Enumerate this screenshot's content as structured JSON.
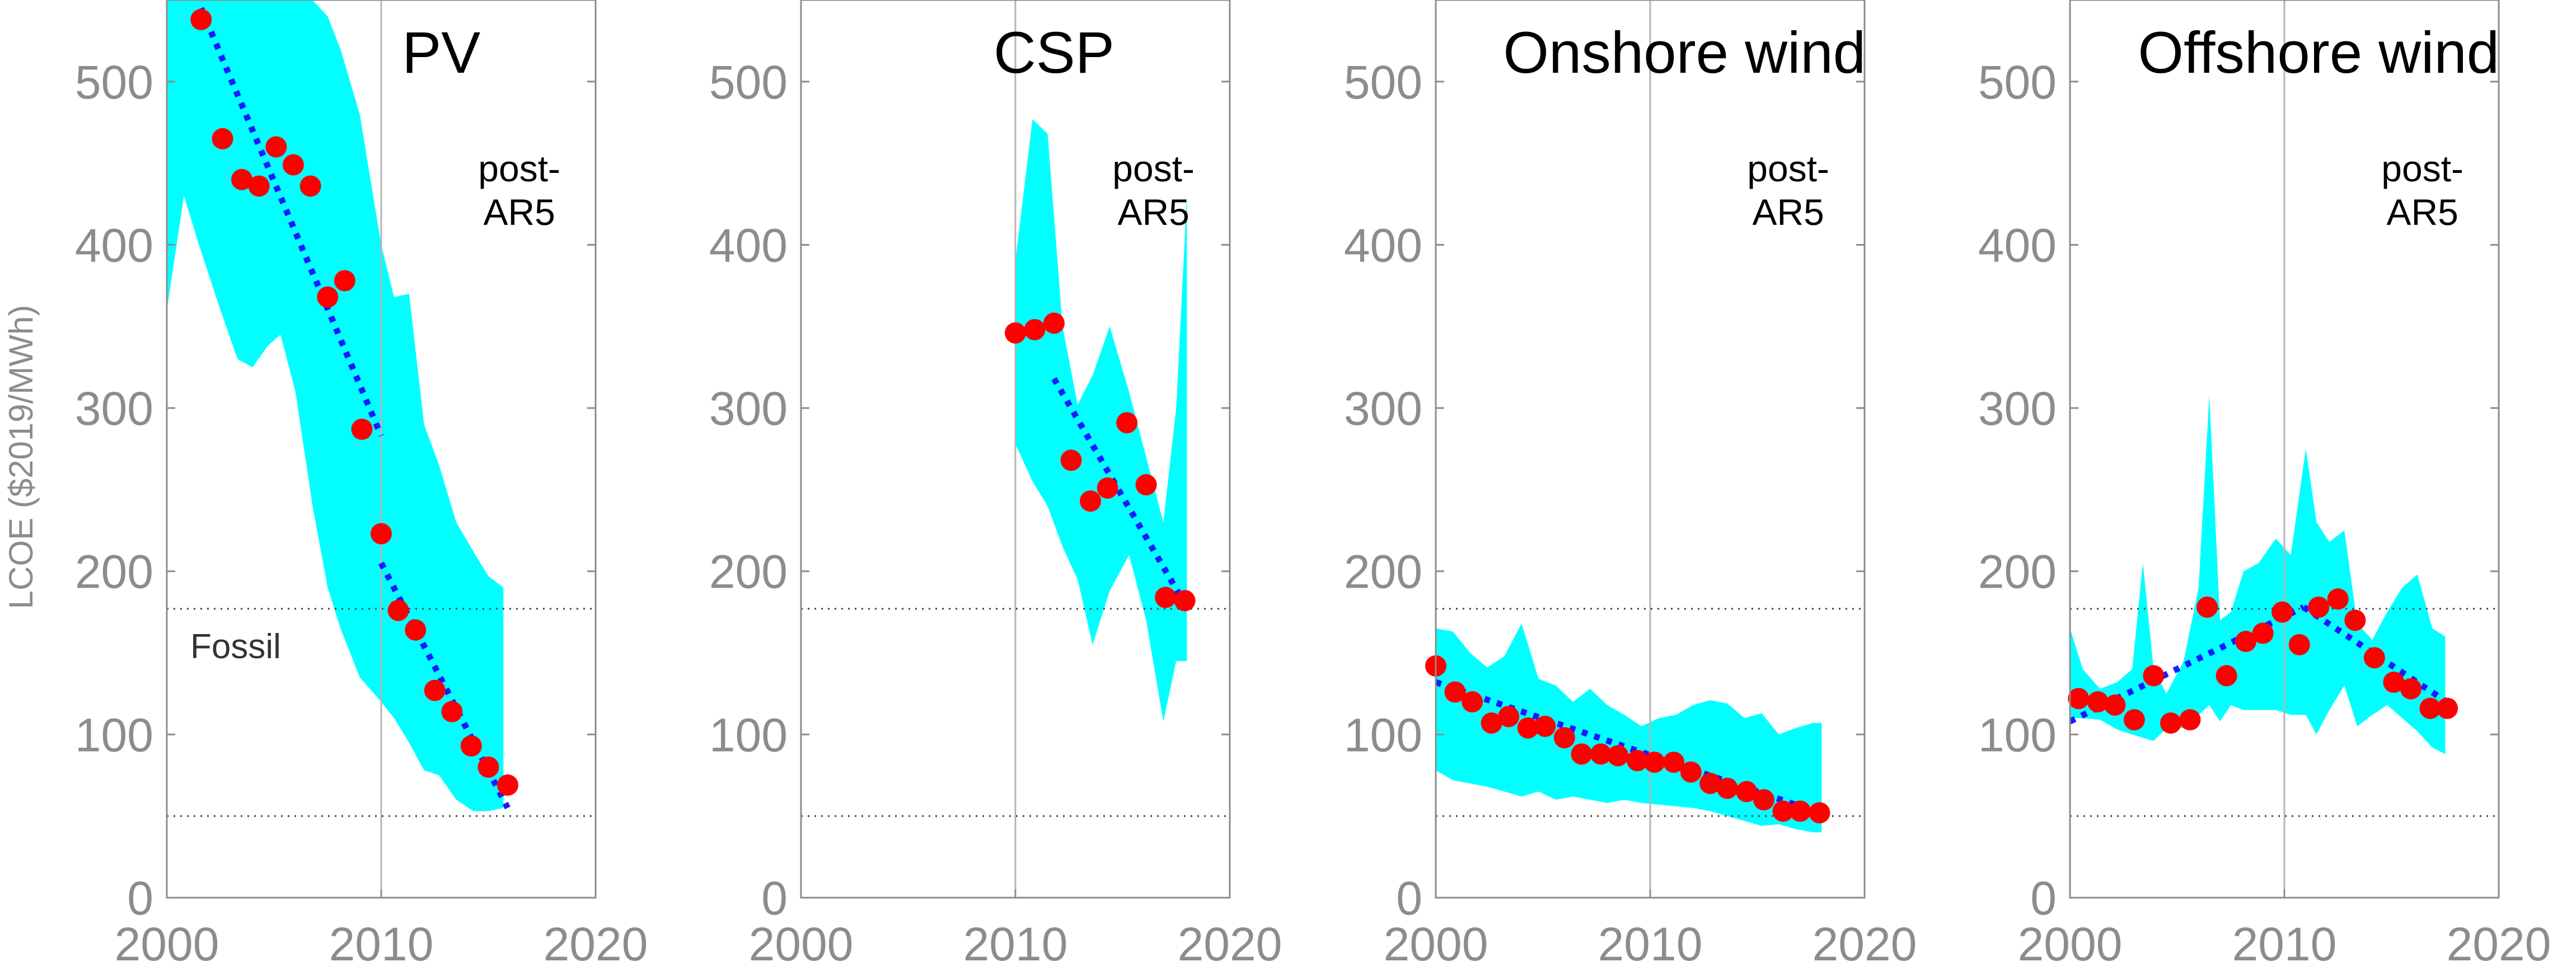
{
  "colors": {
    "band": "#00ffff",
    "points": "#ff0000",
    "trend": "#1a1aff",
    "axis": "#8c8c8c",
    "fossil_line": "#444444"
  },
  "chart_data": [
    {
      "type": "scatter",
      "title": "PV",
      "annotation": "post-\nAR5",
      "fossil_label": "Fossil",
      "ylabel": "LCOE ($2019/MWh)",
      "xlim": [
        2000,
        2020
      ],
      "ylim": [
        0,
        550
      ],
      "xticks": [
        "2000",
        "2010",
        "2020"
      ],
      "yticks": [
        "0",
        "100",
        "200",
        "300",
        "400",
        "500"
      ],
      "reference_year": 2010,
      "fossil_range": [
        50,
        177
      ],
      "points": {
        "x": [
          2001.6,
          2002.6,
          2003.5,
          2004.3,
          2005.1,
          2005.9,
          2006.7,
          2007.5,
          2008.3,
          2009.1,
          2010.0,
          2010.8,
          2011.6,
          2012.5,
          2013.3,
          2014.2,
          2015.0,
          2015.9
        ],
        "y": [
          538,
          465,
          440,
          436,
          460,
          449,
          436,
          368,
          378,
          287,
          223,
          176,
          164,
          127,
          114,
          93,
          80,
          69
        ]
      },
      "band": {
        "x": [
          2000.0,
          2000.8,
          2001.5,
          2002.5,
          2003.3,
          2004.0,
          2004.7,
          2005.3,
          2006.0,
          2006.8,
          2007.5,
          2008.1,
          2009.0,
          2010.0,
          2010.6,
          2011.3,
          2012.0,
          2012.7,
          2013.5,
          2014.3,
          2015.0,
          2015.7
        ],
        "upper": [
          550,
          550,
          550,
          550,
          550,
          550,
          550,
          550,
          550,
          550,
          540,
          520,
          480,
          400,
          368,
          370,
          290,
          265,
          230,
          212,
          197,
          190
        ],
        "lower": [
          360,
          430,
          400,
          360,
          330,
          325,
          338,
          345,
          310,
          240,
          190,
          165,
          135,
          120,
          110,
          95,
          78,
          75,
          60,
          53,
          53,
          55
        ]
      },
      "trends": [
        {
          "x": [
            2001.6,
            2010.0
          ],
          "y": [
            545,
            283
          ]
        },
        {
          "x": [
            2010.0,
            2015.9
          ],
          "y": [
            205,
            55
          ]
        }
      ]
    },
    {
      "type": "scatter",
      "title": "CSP",
      "annotation": "post-\nAR5",
      "xlim": [
        2000,
        2020
      ],
      "ylim": [
        0,
        550
      ],
      "xticks": [
        "2000",
        "2010",
        "2020"
      ],
      "yticks": [
        "0",
        "100",
        "200",
        "300",
        "400",
        "500"
      ],
      "reference_year": 2010,
      "fossil_range": [
        50,
        177
      ],
      "points": {
        "x": [
          2010.0,
          2010.9,
          2011.8,
          2012.6,
          2013.5,
          2014.3,
          2015.2,
          2016.1,
          2017.0,
          2017.9
        ],
        "y": [
          346,
          348,
          352,
          268,
          243,
          251,
          291,
          253,
          184,
          182
        ]
      },
      "band": {
        "x": [
          2010.0,
          2010.8,
          2011.5,
          2012.2,
          2012.9,
          2013.6,
          2014.4,
          2015.3,
          2016.1,
          2016.9,
          2017.5,
          2018.0
        ],
        "upper": [
          390,
          477,
          468,
          350,
          302,
          320,
          350,
          310,
          270,
          230,
          300,
          430
        ],
        "lower": [
          278,
          255,
          240,
          215,
          195,
          155,
          188,
          210,
          170,
          108,
          145,
          145
        ]
      },
      "trends": [
        {
          "x": [
            2011.8,
            2017.9
          ],
          "y": [
            318,
            180
          ]
        }
      ]
    },
    {
      "type": "scatter",
      "title": "Onshore wind",
      "annotation": "post-\nAR5",
      "xlim": [
        2000,
        2020
      ],
      "ylim": [
        0,
        550
      ],
      "xticks": [
        "2000",
        "2010",
        "2020"
      ],
      "yticks": [
        "0",
        "100",
        "200",
        "300",
        "400",
        "500"
      ],
      "reference_year": 2010,
      "fossil_range": [
        50,
        177
      ],
      "points": {
        "x": [
          2000.0,
          2000.9,
          2001.7,
          2002.6,
          2003.4,
          2004.3,
          2005.1,
          2006.0,
          2006.8,
          2007.7,
          2008.5,
          2009.4,
          2010.2,
          2011.1,
          2011.9,
          2012.8,
          2013.6,
          2014.5,
          2015.3,
          2016.2,
          2017.0,
          2017.9
        ],
        "y": [
          142,
          126,
          120,
          107,
          111,
          104,
          105,
          98,
          88,
          88,
          87,
          84,
          83,
          83,
          77,
          70,
          67,
          65,
          60,
          53,
          53,
          52
        ]
      },
      "band": {
        "x": [
          2000.0,
          2000.8,
          2001.6,
          2002.4,
          2003.2,
          2004.0,
          2004.8,
          2005.6,
          2006.4,
          2007.2,
          2008.0,
          2008.8,
          2009.6,
          2010.4,
          2011.2,
          2012.0,
          2012.8,
          2013.6,
          2014.4,
          2015.2,
          2016.0,
          2016.8,
          2017.6,
          2018.0
        ],
        "upper": [
          165,
          163,
          150,
          141,
          148,
          168,
          134,
          130,
          120,
          128,
          118,
          112,
          105,
          110,
          112,
          118,
          121,
          119,
          110,
          113,
          100,
          104,
          107,
          107
        ],
        "lower": [
          78,
          72,
          70,
          68,
          65,
          62,
          65,
          60,
          62,
          60,
          58,
          60,
          58,
          57,
          56,
          55,
          53,
          50,
          47,
          44,
          45,
          42,
          40,
          40
        ]
      },
      "trends": [
        {
          "x": [
            2000.0,
            2017.9
          ],
          "y": [
            132,
            52
          ]
        }
      ]
    },
    {
      "type": "scatter",
      "title": "Offshore wind",
      "annotation": "post-\nAR5",
      "xlim": [
        2000,
        2020
      ],
      "ylim": [
        0,
        550
      ],
      "xticks": [
        "2000",
        "2010",
        "2020"
      ],
      "yticks": [
        "0",
        "100",
        "200",
        "300",
        "400",
        "500"
      ],
      "reference_year": 2010,
      "fossil_range": [
        50,
        177
      ],
      "points": {
        "x": [
          2000.4,
          2001.3,
          2002.1,
          2003.0,
          2003.9,
          2004.7,
          2005.6,
          2006.4,
          2007.3,
          2008.2,
          2009.0,
          2009.9,
          2010.7,
          2011.6,
          2012.5,
          2013.3,
          2014.2,
          2015.1,
          2015.9,
          2016.8,
          2017.6
        ],
        "y": [
          122,
          120,
          118,
          109,
          136,
          107,
          109,
          178,
          136,
          157,
          162,
          175,
          155,
          178,
          183,
          170,
          147,
          132,
          128,
          116,
          116
        ]
      },
      "band": {
        "x": [
          2000.0,
          2000.6,
          2001.4,
          2002.2,
          2002.9,
          2003.4,
          2003.9,
          2004.5,
          2005.3,
          2006.0,
          2006.5,
          2007.0,
          2007.5,
          2008.1,
          2008.8,
          2009.6,
          2010.3,
          2011.0,
          2011.5,
          2012.1,
          2012.8,
          2013.4,
          2014.1,
          2014.8,
          2015.5,
          2016.2,
          2016.9,
          2017.5
        ],
        "upper": [
          165,
          140,
          128,
          132,
          140,
          205,
          140,
          125,
          145,
          190,
          308,
          170,
          175,
          200,
          205,
          220,
          210,
          275,
          230,
          218,
          225,
          168,
          158,
          175,
          190,
          198,
          165,
          160
        ],
        "lower": [
          110,
          110,
          109,
          103,
          100,
          98,
          96,
          104,
          104,
          112,
          118,
          108,
          118,
          115,
          115,
          115,
          112,
          112,
          100,
          115,
          130,
          105,
          112,
          118,
          110,
          102,
          92,
          88
        ]
      },
      "trends": [
        {
          "x": [
            2000.0,
            2010.9
          ],
          "y": [
            108,
            178
          ]
        },
        {
          "x": [
            2010.9,
            2017.8
          ],
          "y": [
            178,
            118
          ]
        }
      ]
    }
  ]
}
